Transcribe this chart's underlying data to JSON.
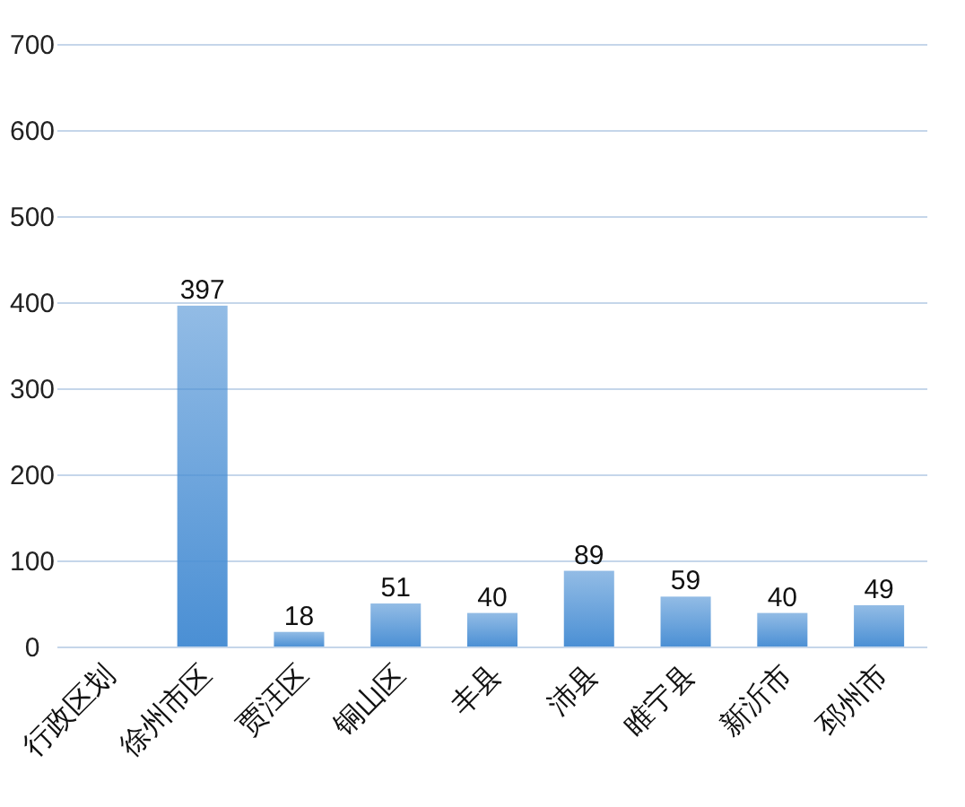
{
  "chart_data": {
    "type": "bar",
    "categories": [
      "行政区划",
      "徐州市区",
      "贾汪区",
      "铜山区",
      "丰县",
      "沛县",
      "睢宁县",
      "新沂市",
      "邳州市"
    ],
    "values": [
      null,
      397,
      18,
      51,
      40,
      89,
      59,
      40,
      49
    ],
    "color": "#4a8fd4",
    "ylim": [
      0,
      700
    ],
    "yticks": [
      0,
      100,
      200,
      300,
      400,
      500,
      600,
      700
    ],
    "grid": "y",
    "data_labels": true
  }
}
